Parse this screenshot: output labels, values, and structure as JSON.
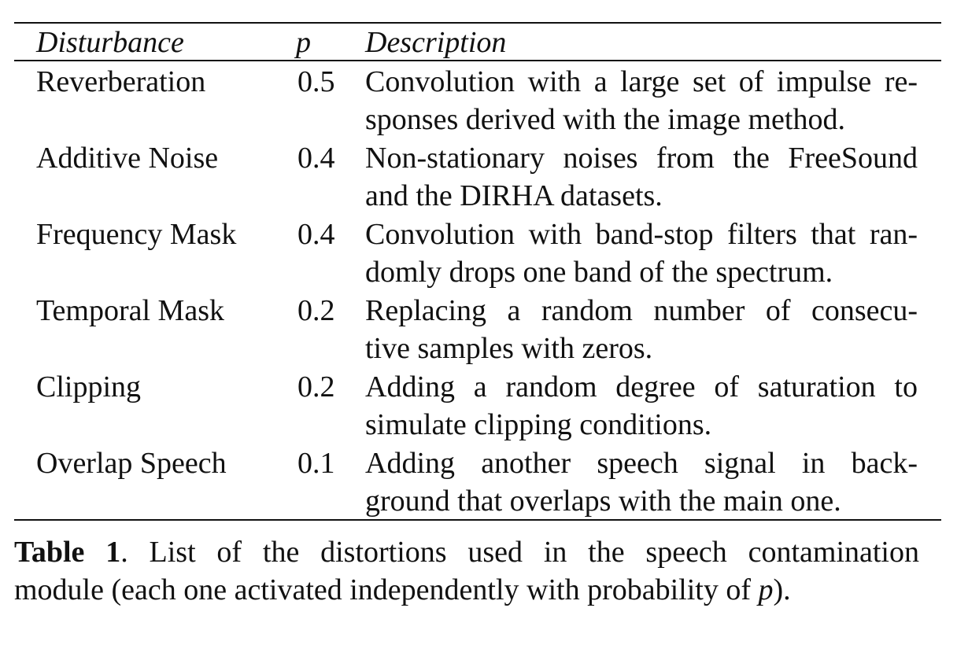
{
  "table": {
    "headers": {
      "disturbance": "Disturbance",
      "p": "p",
      "description": "Description"
    },
    "rows": [
      {
        "name": "Reverberation",
        "p": "0.5",
        "desc_lines": [
          "Convolution with a large set of impulse re-",
          "sponses derived with the image method."
        ]
      },
      {
        "name": "Additive Noise",
        "p": "0.4",
        "desc_lines": [
          "Non-stationary noises from the FreeSound",
          "and the DIRHA datasets."
        ]
      },
      {
        "name": "Frequency Mask",
        "p": "0.4",
        "desc_lines": [
          "Convolution with band-stop filters that ran-",
          "domly drops one band of the spectrum."
        ]
      },
      {
        "name": "Temporal Mask",
        "p": "0.2",
        "desc_lines": [
          "Replacing a random number of consecu-",
          "tive samples with zeros."
        ]
      },
      {
        "name": "Clipping",
        "p": "0.2",
        "desc_lines": [
          "Adding a random degree of saturation to",
          "simulate clipping conditions."
        ]
      },
      {
        "name": "Overlap Speech",
        "p": "0.1",
        "desc_lines": [
          "Adding another speech signal in back-",
          "ground that overlaps with the main one."
        ]
      }
    ]
  },
  "caption": {
    "label": "Table 1",
    "line1_rest": ".  List of the distortions used in the speech contamination",
    "line2_before": "module (each one activated independently with probability of ",
    "line2_var": "p",
    "line2_after": ")."
  }
}
